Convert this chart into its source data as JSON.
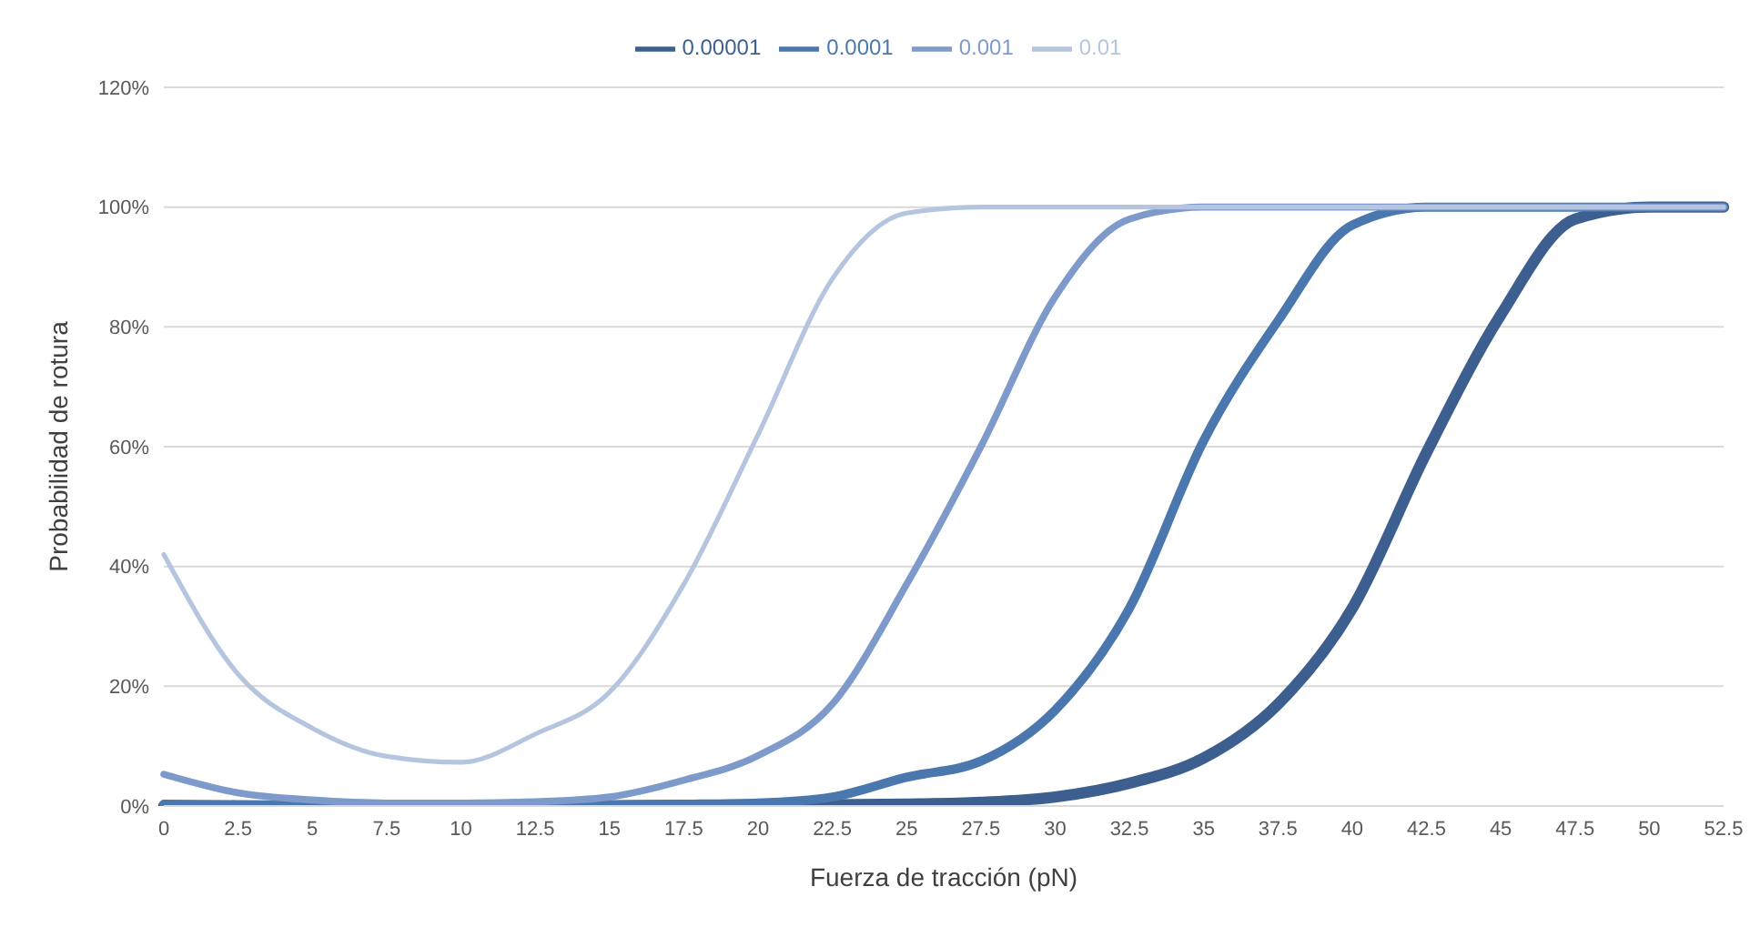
{
  "chart_data": {
    "type": "line",
    "xlabel": "Fuerza de tracción (pN)",
    "ylabel": "Probabilidad de rotura",
    "categories": [
      "0",
      "2.5",
      "5",
      "7.5",
      "10",
      "12.5",
      "15",
      "17.5",
      "20",
      "22.5",
      "25",
      "27.5",
      "30",
      "32.5",
      "35",
      "37.5",
      "40",
      "42.5",
      "45",
      "47.5",
      "50",
      "52.5"
    ],
    "series": [
      {
        "name": "0.00001",
        "color": "#3c5f8f",
        "values": [
          0,
          0,
          0,
          0,
          0,
          0,
          0,
          0.1,
          0.1,
          0.2,
          0.3,
          0.6,
          1.5,
          3.8,
          8,
          17,
          33,
          59,
          82,
          98,
          100,
          100
        ]
      },
      {
        "name": "0.0001",
        "color": "#4a77ad",
        "values": [
          0.3,
          0.2,
          0.1,
          0.1,
          0.1,
          0.1,
          0.2,
          0.3,
          0.5,
          1.5,
          4.8,
          7.5,
          16,
          33,
          61,
          81,
          97,
          100,
          100,
          100,
          100,
          100
        ]
      },
      {
        "name": "0.001",
        "color": "#7d9acb",
        "values": [
          5.3,
          2.2,
          1,
          0.5,
          0.5,
          0.7,
          1.5,
          4.3,
          8.4,
          17,
          37,
          60,
          85,
          98,
          100,
          100,
          100,
          100,
          100,
          100,
          100,
          100
        ]
      },
      {
        "name": "0.01",
        "color": "#b5c5df",
        "values": [
          42,
          22,
          13,
          8.3,
          7.3,
          12,
          19,
          37,
          62,
          88,
          99,
          100,
          100,
          100,
          100,
          100,
          100,
          100,
          100,
          100,
          100,
          100
        ]
      }
    ],
    "ylim": [
      0,
      120
    ],
    "yticks": [
      {
        "value": 0,
        "label": "0%"
      },
      {
        "value": 20,
        "label": "20%"
      },
      {
        "value": 40,
        "label": "40%"
      },
      {
        "value": 60,
        "label": "60%"
      },
      {
        "value": 80,
        "label": "80%"
      },
      {
        "value": 100,
        "label": "100%"
      },
      {
        "value": 120,
        "label": "120%"
      }
    ],
    "grid": "y",
    "legend": "top",
    "marker": "none",
    "line_style": "solid"
  }
}
